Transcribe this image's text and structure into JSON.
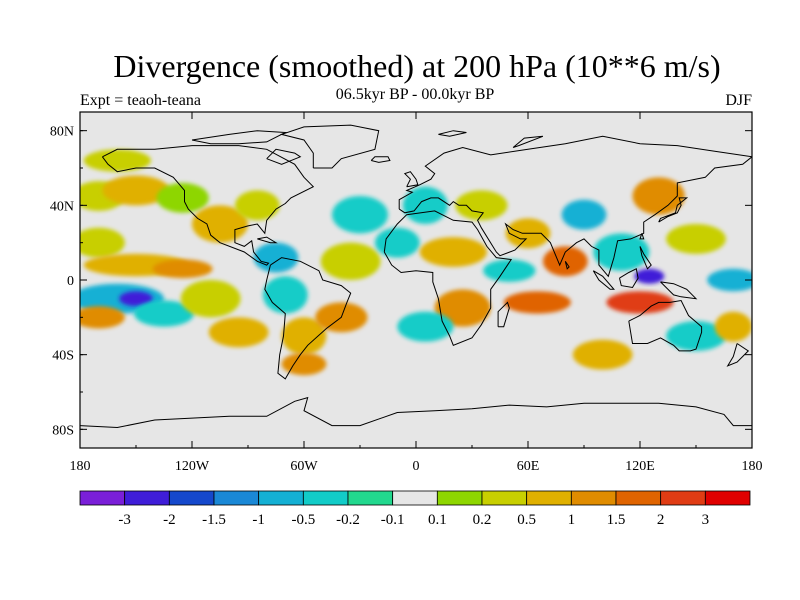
{
  "title": "Divergence (smoothed) at 200 hPa (10**6 m/s)",
  "subtitle_left": "Expt = teaoh-teana",
  "subtitle_center": "06.5kyr BP - 00.0kyr BP",
  "subtitle_right": "DJF",
  "map": {
    "projection": "cylindrical equidistant",
    "lat_range": [
      -90,
      90
    ],
    "lon_range": [
      -180,
      180
    ],
    "lat_ticks": [
      {
        "value": 80,
        "label": "80N"
      },
      {
        "value": 40,
        "label": "40N"
      },
      {
        "value": 0,
        "label": "0"
      },
      {
        "value": -40,
        "label": "40S"
      },
      {
        "value": -80,
        "label": "80S"
      }
    ],
    "lon_ticks": [
      {
        "value": -180,
        "label": "180"
      },
      {
        "value": -120,
        "label": "120W"
      },
      {
        "value": -60,
        "label": "60W"
      },
      {
        "value": 0,
        "label": "0"
      },
      {
        "value": 60,
        "label": "60E"
      },
      {
        "value": 120,
        "label": "120E"
      },
      {
        "value": 180,
        "label": "180"
      }
    ],
    "field_blobs": [
      {
        "lon": -170,
        "lat": 45,
        "rlon": 14,
        "rlat": 8,
        "level": 9
      },
      {
        "lon": -150,
        "lat": 48,
        "rlon": 18,
        "rlat": 8,
        "level": 10
      },
      {
        "lon": -125,
        "lat": 44,
        "rlon": 14,
        "rlat": 8,
        "level": 8
      },
      {
        "lon": -160,
        "lat": 64,
        "rlon": 18,
        "rlat": 6,
        "level": 9
      },
      {
        "lon": -170,
        "lat": 20,
        "rlon": 14,
        "rlat": 8,
        "level": 9
      },
      {
        "lon": -150,
        "lat": 8,
        "rlon": 28,
        "rlat": 6,
        "level": 10
      },
      {
        "lon": -125,
        "lat": 6,
        "rlon": 16,
        "rlat": 5,
        "level": 11
      },
      {
        "lon": -160,
        "lat": -10,
        "rlon": 25,
        "rlat": 8,
        "level": 4
      },
      {
        "lon": -150,
        "lat": -10,
        "rlon": 9,
        "rlat": 4,
        "level": 1
      },
      {
        "lon": -170,
        "lat": -20,
        "rlon": 14,
        "rlat": 6,
        "level": 11
      },
      {
        "lon": -135,
        "lat": -18,
        "rlon": 16,
        "rlat": 7,
        "level": 5
      },
      {
        "lon": -110,
        "lat": -10,
        "rlon": 16,
        "rlat": 10,
        "level": 9
      },
      {
        "lon": -95,
        "lat": -28,
        "rlon": 16,
        "rlat": 8,
        "level": 10
      },
      {
        "lon": -105,
        "lat": 30,
        "rlon": 15,
        "rlat": 10,
        "level": 10
      },
      {
        "lon": -85,
        "lat": 40,
        "rlon": 12,
        "rlat": 8,
        "level": 9
      },
      {
        "lon": -75,
        "lat": 12,
        "rlon": 12,
        "rlat": 8,
        "level": 4
      },
      {
        "lon": -70,
        "lat": -8,
        "rlon": 12,
        "rlat": 10,
        "level": 5
      },
      {
        "lon": -60,
        "lat": -30,
        "rlon": 12,
        "rlat": 10,
        "level": 10
      },
      {
        "lon": -60,
        "lat": -45,
        "rlon": 12,
        "rlat": 6,
        "level": 11
      },
      {
        "lon": -35,
        "lat": 10,
        "rlon": 16,
        "rlat": 10,
        "level": 9
      },
      {
        "lon": -40,
        "lat": -20,
        "rlon": 14,
        "rlat": 8,
        "level": 11
      },
      {
        "lon": -30,
        "lat": 35,
        "rlon": 15,
        "rlat": 10,
        "level": 5
      },
      {
        "lon": -10,
        "lat": 20,
        "rlon": 12,
        "rlat": 8,
        "level": 5
      },
      {
        "lon": 5,
        "lat": 40,
        "rlon": 12,
        "rlat": 10,
        "level": 5
      },
      {
        "lon": 20,
        "lat": 15,
        "rlon": 18,
        "rlat": 8,
        "level": 10
      },
      {
        "lon": 25,
        "lat": -15,
        "rlon": 15,
        "rlat": 10,
        "level": 11
      },
      {
        "lon": 5,
        "lat": -25,
        "rlon": 15,
        "rlat": 8,
        "level": 5
      },
      {
        "lon": 35,
        "lat": 40,
        "rlon": 14,
        "rlat": 8,
        "level": 9
      },
      {
        "lon": 50,
        "lat": 5,
        "rlon": 14,
        "rlat": 6,
        "level": 5
      },
      {
        "lon": 60,
        "lat": 25,
        "rlon": 12,
        "rlat": 8,
        "level": 10
      },
      {
        "lon": 80,
        "lat": 10,
        "rlon": 12,
        "rlat": 8,
        "level": 12
      },
      {
        "lon": 65,
        "lat": -12,
        "rlon": 18,
        "rlat": 6,
        "level": 12
      },
      {
        "lon": 90,
        "lat": 35,
        "rlon": 12,
        "rlat": 8,
        "level": 4
      },
      {
        "lon": 110,
        "lat": 15,
        "rlon": 15,
        "rlat": 10,
        "level": 5
      },
      {
        "lon": 125,
        "lat": 2,
        "rlon": 8,
        "rlat": 4,
        "level": 1
      },
      {
        "lon": 130,
        "lat": 45,
        "rlon": 14,
        "rlat": 10,
        "level": 11
      },
      {
        "lon": 150,
        "lat": 22,
        "rlon": 16,
        "rlat": 8,
        "level": 9
      },
      {
        "lon": 120,
        "lat": -12,
        "rlon": 18,
        "rlat": 6,
        "level": 13
      },
      {
        "lon": 150,
        "lat": -30,
        "rlon": 16,
        "rlat": 8,
        "level": 5
      },
      {
        "lon": 100,
        "lat": -40,
        "rlon": 16,
        "rlat": 8,
        "level": 10
      },
      {
        "lon": 170,
        "lat": 0,
        "rlon": 14,
        "rlat": 6,
        "level": 4
      },
      {
        "lon": 170,
        "lat": -25,
        "rlon": 10,
        "rlat": 8,
        "level": 10
      }
    ]
  },
  "colorbar": {
    "labels": [
      "-3",
      "-2",
      "-1.5",
      "-1",
      "-0.5",
      "-0.2",
      "-0.1",
      "0.1",
      "0.2",
      "0.5",
      "1",
      "1.5",
      "2",
      "3"
    ],
    "colors": [
      "#7a1fd8",
      "#3f1dd8",
      "#1548cc",
      "#1a88d6",
      "#14b0d4",
      "#12ccc8",
      "#22d88e",
      "#e6e6e6",
      "#8ed600",
      "#c8cf00",
      "#e0b000",
      "#e08c00",
      "#e06400",
      "#e03c14",
      "#e00000"
    ]
  }
}
